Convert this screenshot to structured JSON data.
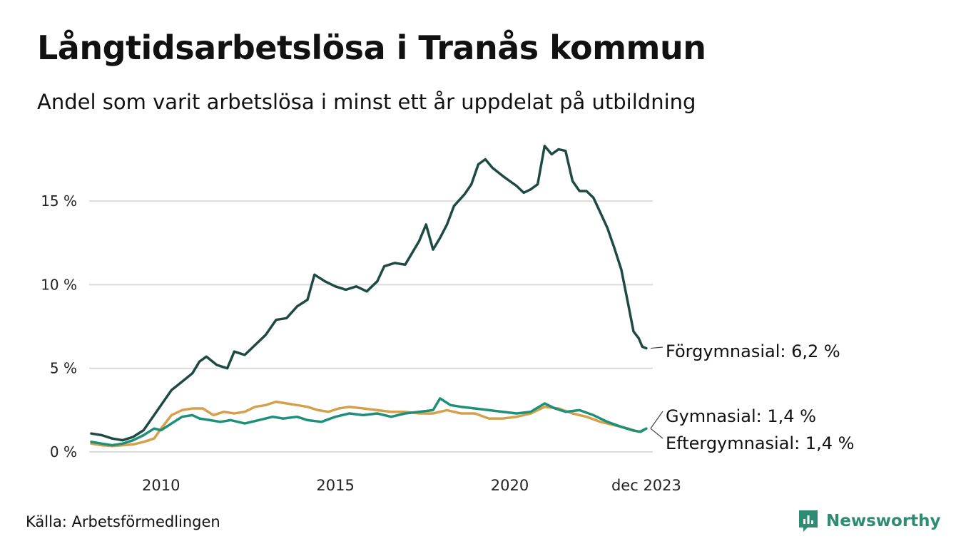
{
  "header": {
    "title": "Långtidsarbetslösa i Tranås kommun",
    "subtitle": "Andel som varit arbetslösa i minst ett år uppdelat på utbildning"
  },
  "footer": {
    "source": "Källa: Arbetsförmedlingen",
    "brand": "Newsworthy",
    "brand_color": "#2e8b74"
  },
  "chart_data": {
    "type": "line",
    "title": "Långtidsarbetslösa i Tranås kommun",
    "subtitle": "Andel som varit arbetslösa i minst ett år uppdelat på utbildning",
    "xlabel": "",
    "ylabel": "",
    "ylim": [
      0,
      18.5
    ],
    "xlim": [
      2008.0,
      2024.0
    ],
    "grid": true,
    "y_ticks": [
      {
        "value": 0,
        "label": "0 %"
      },
      {
        "value": 5,
        "label": "5 %"
      },
      {
        "value": 10,
        "label": "10 %"
      },
      {
        "value": 15,
        "label": "15 %"
      }
    ],
    "x_ticks": [
      {
        "value": 2010,
        "label": "2010"
      },
      {
        "value": 2015,
        "label": "2015"
      },
      {
        "value": 2020,
        "label": "2020"
      },
      {
        "value": 2023.917,
        "label": "dec 2023"
      }
    ],
    "series": [
      {
        "name": "Förgymnasial",
        "label": "Förgymnasial: 6,2 %",
        "color": "#1e4a43",
        "points": [
          [
            2008.0,
            1.1
          ],
          [
            2008.3,
            1.0
          ],
          [
            2008.6,
            0.8
          ],
          [
            2008.9,
            0.7
          ],
          [
            2009.2,
            0.9
          ],
          [
            2009.5,
            1.3
          ],
          [
            2009.8,
            2.2
          ],
          [
            2010.0,
            2.8
          ],
          [
            2010.3,
            3.7
          ],
          [
            2010.6,
            4.2
          ],
          [
            2010.9,
            4.7
          ],
          [
            2011.1,
            5.4
          ],
          [
            2011.3,
            5.7
          ],
          [
            2011.6,
            5.2
          ],
          [
            2011.9,
            5.0
          ],
          [
            2012.1,
            6.0
          ],
          [
            2012.4,
            5.8
          ],
          [
            2012.7,
            6.4
          ],
          [
            2013.0,
            7.0
          ],
          [
            2013.3,
            7.9
          ],
          [
            2013.6,
            8.0
          ],
          [
            2013.9,
            8.7
          ],
          [
            2014.2,
            9.1
          ],
          [
            2014.4,
            10.6
          ],
          [
            2014.7,
            10.2
          ],
          [
            2015.0,
            9.9
          ],
          [
            2015.3,
            9.7
          ],
          [
            2015.6,
            9.9
          ],
          [
            2015.9,
            9.6
          ],
          [
            2016.2,
            10.2
          ],
          [
            2016.4,
            11.1
          ],
          [
            2016.7,
            11.3
          ],
          [
            2017.0,
            11.2
          ],
          [
            2017.2,
            11.9
          ],
          [
            2017.4,
            12.6
          ],
          [
            2017.6,
            13.6
          ],
          [
            2017.8,
            12.1
          ],
          [
            2018.0,
            12.8
          ],
          [
            2018.2,
            13.6
          ],
          [
            2018.4,
            14.7
          ],
          [
            2018.7,
            15.4
          ],
          [
            2018.9,
            16.0
          ],
          [
            2019.1,
            17.2
          ],
          [
            2019.3,
            17.5
          ],
          [
            2019.5,
            17.0
          ],
          [
            2019.8,
            16.5
          ],
          [
            2020.0,
            16.2
          ],
          [
            2020.2,
            15.9
          ],
          [
            2020.4,
            15.5
          ],
          [
            2020.6,
            15.7
          ],
          [
            2020.8,
            16.0
          ],
          [
            2021.0,
            18.3
          ],
          [
            2021.2,
            17.8
          ],
          [
            2021.4,
            18.1
          ],
          [
            2021.6,
            18.0
          ],
          [
            2021.8,
            16.2
          ],
          [
            2022.0,
            15.6
          ],
          [
            2022.2,
            15.6
          ],
          [
            2022.4,
            15.2
          ],
          [
            2022.6,
            14.3
          ],
          [
            2022.8,
            13.4
          ],
          [
            2023.0,
            12.2
          ],
          [
            2023.2,
            10.9
          ],
          [
            2023.4,
            8.8
          ],
          [
            2023.55,
            7.2
          ],
          [
            2023.7,
            6.8
          ],
          [
            2023.8,
            6.3
          ],
          [
            2023.917,
            6.2
          ]
        ]
      },
      {
        "name": "Gymnasial",
        "label": "Gymnasial: 1,4 %",
        "color": "#1f8f7a",
        "points": [
          [
            2008.0,
            0.6
          ],
          [
            2008.3,
            0.5
          ],
          [
            2008.6,
            0.4
          ],
          [
            2008.9,
            0.5
          ],
          [
            2009.2,
            0.7
          ],
          [
            2009.5,
            1.0
          ],
          [
            2009.8,
            1.4
          ],
          [
            2010.0,
            1.3
          ],
          [
            2010.3,
            1.7
          ],
          [
            2010.6,
            2.1
          ],
          [
            2010.9,
            2.2
          ],
          [
            2011.1,
            2.0
          ],
          [
            2011.4,
            1.9
          ],
          [
            2011.7,
            1.8
          ],
          [
            2012.0,
            1.9
          ],
          [
            2012.4,
            1.7
          ],
          [
            2012.8,
            1.9
          ],
          [
            2013.2,
            2.1
          ],
          [
            2013.5,
            2.0
          ],
          [
            2013.9,
            2.1
          ],
          [
            2014.2,
            1.9
          ],
          [
            2014.6,
            1.8
          ],
          [
            2015.0,
            2.1
          ],
          [
            2015.4,
            2.3
          ],
          [
            2015.8,
            2.2
          ],
          [
            2016.2,
            2.3
          ],
          [
            2016.6,
            2.1
          ],
          [
            2017.0,
            2.3
          ],
          [
            2017.4,
            2.4
          ],
          [
            2017.8,
            2.5
          ],
          [
            2018.0,
            3.2
          ],
          [
            2018.3,
            2.8
          ],
          [
            2018.6,
            2.7
          ],
          [
            2019.0,
            2.6
          ],
          [
            2019.4,
            2.5
          ],
          [
            2019.8,
            2.4
          ],
          [
            2020.2,
            2.3
          ],
          [
            2020.6,
            2.4
          ],
          [
            2021.0,
            2.9
          ],
          [
            2021.3,
            2.6
          ],
          [
            2021.6,
            2.4
          ],
          [
            2022.0,
            2.5
          ],
          [
            2022.4,
            2.2
          ],
          [
            2022.8,
            1.8
          ],
          [
            2023.2,
            1.5
          ],
          [
            2023.5,
            1.3
          ],
          [
            2023.75,
            1.2
          ],
          [
            2023.917,
            1.4
          ]
        ]
      },
      {
        "name": "Eftergymnasial",
        "label": "Eftergymnasial: 1,4 %",
        "color": "#d4a04c",
        "points": [
          [
            2008.0,
            0.5
          ],
          [
            2008.3,
            0.4
          ],
          [
            2008.6,
            0.35
          ],
          [
            2008.9,
            0.4
          ],
          [
            2009.2,
            0.45
          ],
          [
            2009.5,
            0.6
          ],
          [
            2009.8,
            0.8
          ],
          [
            2010.0,
            1.4
          ],
          [
            2010.3,
            2.2
          ],
          [
            2010.6,
            2.5
          ],
          [
            2010.9,
            2.6
          ],
          [
            2011.2,
            2.6
          ],
          [
            2011.5,
            2.2
          ],
          [
            2011.8,
            2.4
          ],
          [
            2012.1,
            2.3
          ],
          [
            2012.4,
            2.4
          ],
          [
            2012.7,
            2.7
          ],
          [
            2013.0,
            2.8
          ],
          [
            2013.3,
            3.0
          ],
          [
            2013.6,
            2.9
          ],
          [
            2013.9,
            2.8
          ],
          [
            2014.2,
            2.7
          ],
          [
            2014.5,
            2.5
          ],
          [
            2014.8,
            2.4
          ],
          [
            2015.1,
            2.6
          ],
          [
            2015.4,
            2.7
          ],
          [
            2015.8,
            2.6
          ],
          [
            2016.2,
            2.5
          ],
          [
            2016.6,
            2.4
          ],
          [
            2017.0,
            2.4
          ],
          [
            2017.4,
            2.3
          ],
          [
            2017.8,
            2.3
          ],
          [
            2018.2,
            2.5
          ],
          [
            2018.6,
            2.3
          ],
          [
            2019.0,
            2.3
          ],
          [
            2019.4,
            2.0
          ],
          [
            2019.8,
            2.0
          ],
          [
            2020.2,
            2.1
          ],
          [
            2020.6,
            2.3
          ],
          [
            2021.0,
            2.7
          ],
          [
            2021.4,
            2.6
          ],
          [
            2021.8,
            2.3
          ],
          [
            2022.2,
            2.1
          ],
          [
            2022.6,
            1.8
          ],
          [
            2023.0,
            1.6
          ],
          [
            2023.4,
            1.4
          ],
          [
            2023.7,
            1.2
          ],
          [
            2023.917,
            1.4
          ]
        ]
      }
    ]
  }
}
